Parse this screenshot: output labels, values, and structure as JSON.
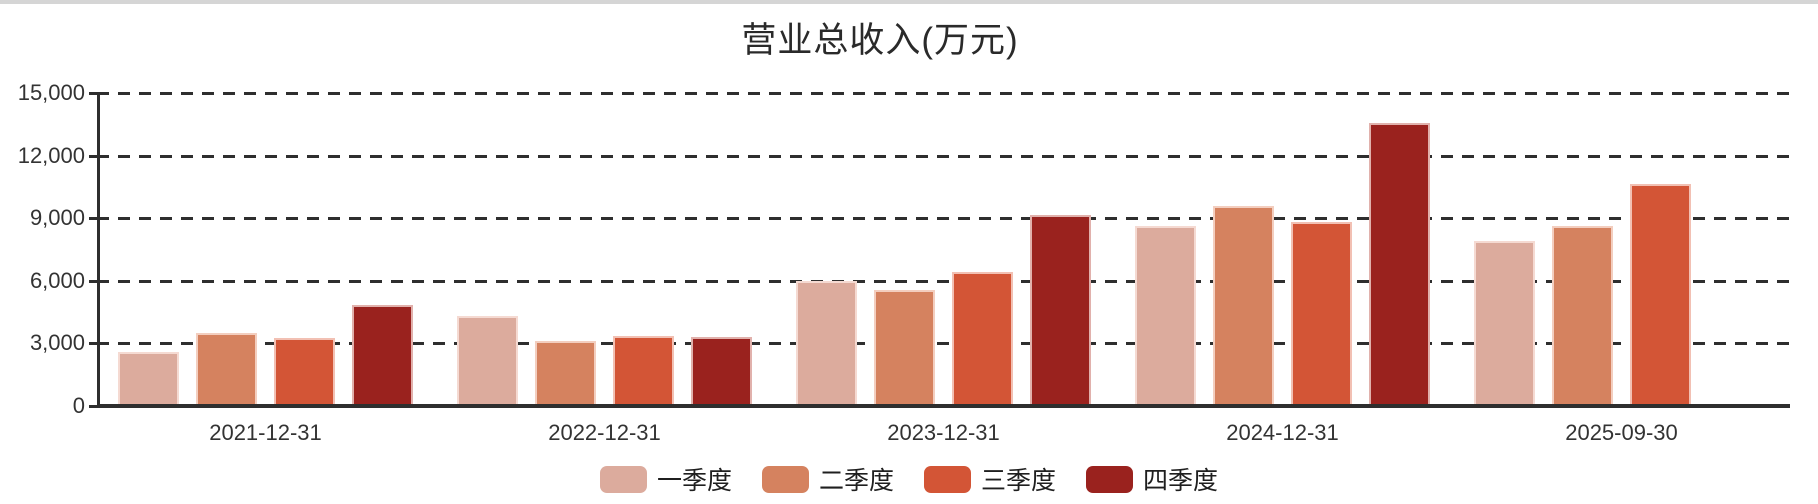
{
  "page": {
    "background_color": "#ffffff",
    "top_border_color": "#d5d5d5"
  },
  "chart_data": {
    "type": "bar",
    "title": "营业总收入(万元)",
    "categories": [
      "2021-12-31",
      "2022-12-31",
      "2023-12-31",
      "2024-12-31",
      "2025-09-30"
    ],
    "series": [
      {
        "name": "一季度",
        "color": "#DCAB9D",
        "values": [
          2600,
          4300,
          6000,
          8650,
          7900
        ]
      },
      {
        "name": "二季度",
        "color": "#D5825F",
        "values": [
          3500,
          3100,
          5550,
          9600,
          8650
        ]
      },
      {
        "name": "三季度",
        "color": "#D35536",
        "values": [
          3250,
          3350,
          6400,
          8800,
          10650
        ]
      },
      {
        "name": "四季度",
        "color": "#9A221E",
        "values": [
          4850,
          3300,
          9150,
          13550,
          null
        ]
      }
    ],
    "ylim": [
      0,
      15000
    ],
    "ytick_interval": 3000,
    "ytick_labels": [
      "0",
      "3,000",
      "6,000",
      "9,000",
      "12,000",
      "15,000"
    ],
    "xlabel": "",
    "ylabel": "",
    "grid": "horizontal-dashed",
    "legend_position": "bottom",
    "axis_color": "#2e2e2e",
    "text_color": "#333333"
  }
}
